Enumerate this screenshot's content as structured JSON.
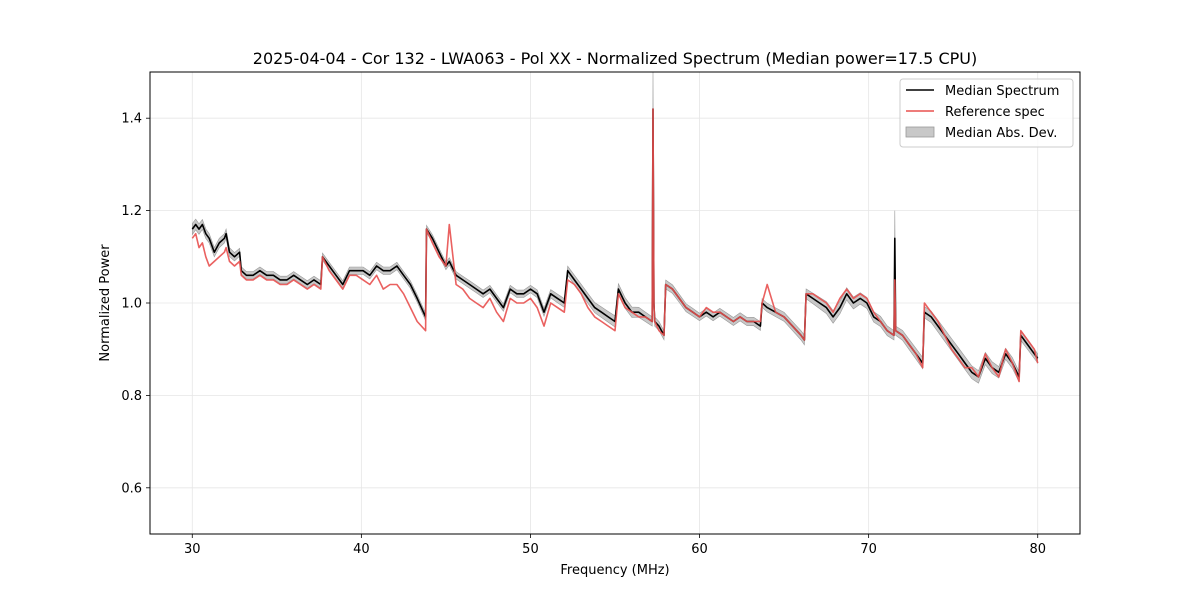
{
  "chart_data": {
    "type": "line",
    "title": "2025-04-04 - Cor 132 - LWA063 - Pol XX - Normalized Spectrum (Median power=17.5 CPU)",
    "xlabel": "Frequency (MHz)",
    "ylabel": "Normalized Power",
    "xlim": [
      27.5,
      82.5
    ],
    "ylim": [
      0.5,
      1.5
    ],
    "xticks": [
      30,
      40,
      50,
      60,
      70,
      80
    ],
    "xtick_labels": [
      "30",
      "40",
      "50",
      "60",
      "70",
      "80"
    ],
    "yticks": [
      0.6,
      0.8,
      1.0,
      1.2,
      1.4
    ],
    "ytick_labels": [
      "0.6",
      "0.8",
      "1.0",
      "1.2",
      "1.4"
    ],
    "grid": true,
    "legend_position": "top-right",
    "legend": [
      "Median Spectrum",
      "Reference spec",
      "Median Abs. Dev."
    ],
    "colors": {
      "median": "#000000",
      "reference": "#e8504f",
      "mad_fill": "#c8c8c8",
      "mad_edge": "#999999",
      "grid": "#e6e6e6"
    },
    "series": [
      {
        "name": "Median Spectrum",
        "x": [
          30.0,
          30.2,
          30.4,
          30.6,
          30.8,
          31.0,
          31.3,
          31.6,
          31.9,
          32.0,
          32.2,
          32.5,
          32.8,
          32.9,
          33.2,
          33.6,
          34.0,
          34.4,
          34.8,
          35.2,
          35.6,
          36.0,
          36.4,
          36.8,
          37.2,
          37.6,
          37.7,
          38.1,
          38.5,
          38.9,
          39.3,
          39.7,
          40.1,
          40.5,
          40.9,
          41.3,
          41.7,
          42.1,
          42.5,
          42.9,
          43.3,
          43.8,
          43.85,
          44.2,
          44.6,
          45.0,
          45.2,
          45.6,
          46.0,
          46.4,
          46.8,
          47.2,
          47.6,
          48.0,
          48.4,
          48.8,
          49.2,
          49.6,
          50.0,
          50.4,
          50.8,
          51.2,
          51.6,
          52.0,
          52.2,
          52.6,
          53.0,
          53.4,
          53.8,
          54.2,
          54.6,
          55.0,
          55.2,
          55.6,
          56.0,
          56.4,
          56.8,
          57.2,
          57.25,
          57.3,
          57.35,
          57.6,
          57.9,
          58.0,
          58.4,
          58.8,
          59.2,
          59.6,
          60.0,
          60.4,
          60.8,
          61.2,
          61.6,
          62.0,
          62.4,
          62.8,
          63.2,
          63.6,
          63.7,
          64.0,
          64.5,
          65.0,
          65.5,
          66.0,
          66.2,
          66.3,
          66.7,
          67.1,
          67.5,
          67.9,
          68.3,
          68.7,
          69.1,
          69.5,
          69.9,
          70.3,
          70.7,
          71.1,
          71.5,
          71.55,
          71.6,
          72.0,
          72.4,
          72.8,
          73.2,
          73.3,
          73.7,
          74.1,
          74.5,
          74.9,
          75.3,
          75.7,
          76.1,
          76.5,
          76.9,
          77.3,
          77.7,
          78.1,
          78.5,
          78.9,
          79.0,
          79.4,
          79.8,
          80.0
        ],
        "values": [
          1.16,
          1.17,
          1.16,
          1.17,
          1.15,
          1.14,
          1.11,
          1.13,
          1.14,
          1.15,
          1.11,
          1.1,
          1.11,
          1.07,
          1.06,
          1.06,
          1.07,
          1.06,
          1.06,
          1.05,
          1.05,
          1.06,
          1.05,
          1.04,
          1.05,
          1.04,
          1.1,
          1.08,
          1.06,
          1.04,
          1.07,
          1.07,
          1.07,
          1.06,
          1.08,
          1.07,
          1.07,
          1.08,
          1.06,
          1.04,
          1.01,
          0.97,
          1.16,
          1.14,
          1.11,
          1.08,
          1.09,
          1.06,
          1.05,
          1.04,
          1.03,
          1.02,
          1.03,
          1.01,
          0.99,
          1.03,
          1.02,
          1.02,
          1.03,
          1.02,
          0.98,
          1.02,
          1.01,
          1.0,
          1.07,
          1.05,
          1.03,
          1.01,
          0.99,
          0.98,
          0.97,
          0.96,
          1.03,
          1.0,
          0.98,
          0.98,
          0.97,
          0.96,
          1.42,
          1.0,
          0.96,
          0.95,
          0.93,
          1.04,
          1.03,
          1.01,
          0.99,
          0.98,
          0.97,
          0.98,
          0.97,
          0.98,
          0.97,
          0.96,
          0.97,
          0.96,
          0.96,
          0.95,
          1.0,
          0.99,
          0.98,
          0.97,
          0.95,
          0.93,
          0.92,
          1.02,
          1.01,
          1.0,
          0.99,
          0.97,
          0.99,
          1.02,
          1.0,
          1.01,
          1.0,
          0.97,
          0.96,
          0.94,
          0.93,
          1.14,
          0.94,
          0.93,
          0.91,
          0.89,
          0.87,
          0.98,
          0.97,
          0.95,
          0.93,
          0.91,
          0.89,
          0.87,
          0.85,
          0.84,
          0.88,
          0.86,
          0.85,
          0.89,
          0.87,
          0.84,
          0.93,
          0.91,
          0.89,
          0.88
        ]
      },
      {
        "name": "Reference spec",
        "x": [
          30.0,
          30.2,
          30.4,
          30.6,
          30.8,
          31.0,
          31.3,
          31.6,
          31.9,
          32.0,
          32.2,
          32.5,
          32.8,
          32.9,
          33.2,
          33.6,
          34.0,
          34.4,
          34.8,
          35.2,
          35.6,
          36.0,
          36.4,
          36.8,
          37.2,
          37.6,
          37.7,
          38.1,
          38.5,
          38.9,
          39.3,
          39.7,
          40.1,
          40.5,
          40.9,
          41.3,
          41.7,
          42.1,
          42.5,
          42.9,
          43.3,
          43.8,
          43.85,
          44.2,
          44.6,
          45.0,
          45.2,
          45.6,
          46.0,
          46.4,
          46.8,
          47.2,
          47.6,
          48.0,
          48.4,
          48.8,
          49.2,
          49.6,
          50.0,
          50.4,
          50.8,
          51.2,
          51.6,
          52.0,
          52.2,
          52.6,
          53.0,
          53.4,
          53.8,
          54.2,
          54.6,
          55.0,
          55.2,
          55.6,
          56.0,
          56.4,
          56.8,
          57.2,
          57.25,
          57.3,
          57.35,
          57.6,
          57.9,
          58.0,
          58.4,
          58.8,
          59.2,
          59.6,
          60.0,
          60.4,
          60.8,
          61.2,
          61.6,
          62.0,
          62.4,
          62.8,
          63.2,
          63.6,
          63.7,
          64.0,
          64.5,
          65.0,
          65.5,
          66.0,
          66.2,
          66.3,
          66.7,
          67.1,
          67.5,
          67.9,
          68.3,
          68.7,
          69.1,
          69.5,
          69.9,
          70.3,
          70.7,
          71.1,
          71.5,
          71.55,
          71.6,
          72.0,
          72.4,
          72.8,
          73.2,
          73.3,
          73.7,
          74.1,
          74.5,
          74.9,
          75.3,
          75.7,
          76.1,
          76.5,
          76.9,
          77.3,
          77.7,
          78.1,
          78.5,
          78.9,
          79.0,
          79.4,
          79.8,
          80.0
        ],
        "values": [
          1.14,
          1.15,
          1.12,
          1.13,
          1.1,
          1.08,
          1.09,
          1.1,
          1.11,
          1.12,
          1.09,
          1.08,
          1.09,
          1.06,
          1.05,
          1.05,
          1.06,
          1.05,
          1.05,
          1.04,
          1.04,
          1.05,
          1.04,
          1.03,
          1.04,
          1.03,
          1.1,
          1.07,
          1.05,
          1.03,
          1.06,
          1.06,
          1.05,
          1.04,
          1.06,
          1.03,
          1.04,
          1.04,
          1.02,
          0.99,
          0.96,
          0.94,
          1.16,
          1.13,
          1.1,
          1.08,
          1.17,
          1.04,
          1.03,
          1.01,
          1.0,
          0.99,
          1.01,
          0.98,
          0.96,
          1.01,
          1.0,
          1.0,
          1.01,
          0.99,
          0.95,
          1.0,
          0.99,
          0.98,
          1.05,
          1.04,
          1.02,
          0.99,
          0.97,
          0.96,
          0.95,
          0.94,
          1.02,
          0.99,
          0.98,
          0.97,
          0.97,
          0.96,
          1.42,
          1.0,
          0.96,
          0.94,
          0.93,
          1.04,
          1.03,
          1.01,
          0.99,
          0.98,
          0.97,
          0.99,
          0.98,
          0.98,
          0.97,
          0.96,
          0.97,
          0.96,
          0.96,
          0.96,
          1.0,
          1.04,
          0.98,
          0.97,
          0.95,
          0.93,
          0.92,
          1.02,
          1.02,
          1.01,
          1.0,
          0.98,
          1.01,
          1.03,
          1.01,
          1.02,
          1.01,
          0.98,
          0.96,
          0.94,
          0.93,
          1.05,
          0.94,
          0.93,
          0.91,
          0.89,
          0.86,
          1.0,
          0.98,
          0.96,
          0.93,
          0.9,
          0.88,
          0.86,
          0.86,
          0.84,
          0.89,
          0.86,
          0.84,
          0.9,
          0.87,
          0.83,
          0.94,
          0.92,
          0.9,
          0.87
        ]
      },
      {
        "name": "Median Abs. Dev.",
        "note": "band half-width around the median spectrum, normalized power units",
        "x": [
          30.0,
          31.0,
          32.0,
          33.0,
          38.0,
          43.0,
          50.0,
          55.0,
          57.2,
          57.25,
          57.3,
          60.0,
          66.0,
          68.0,
          71.5,
          71.55,
          71.6,
          73.0,
          76.0,
          80.0
        ],
        "values": [
          0.012,
          0.01,
          0.01,
          0.008,
          0.008,
          0.008,
          0.008,
          0.012,
          0.01,
          0.08,
          0.01,
          0.008,
          0.01,
          0.014,
          0.01,
          0.06,
          0.01,
          0.012,
          0.014,
          0.01
        ]
      }
    ]
  }
}
